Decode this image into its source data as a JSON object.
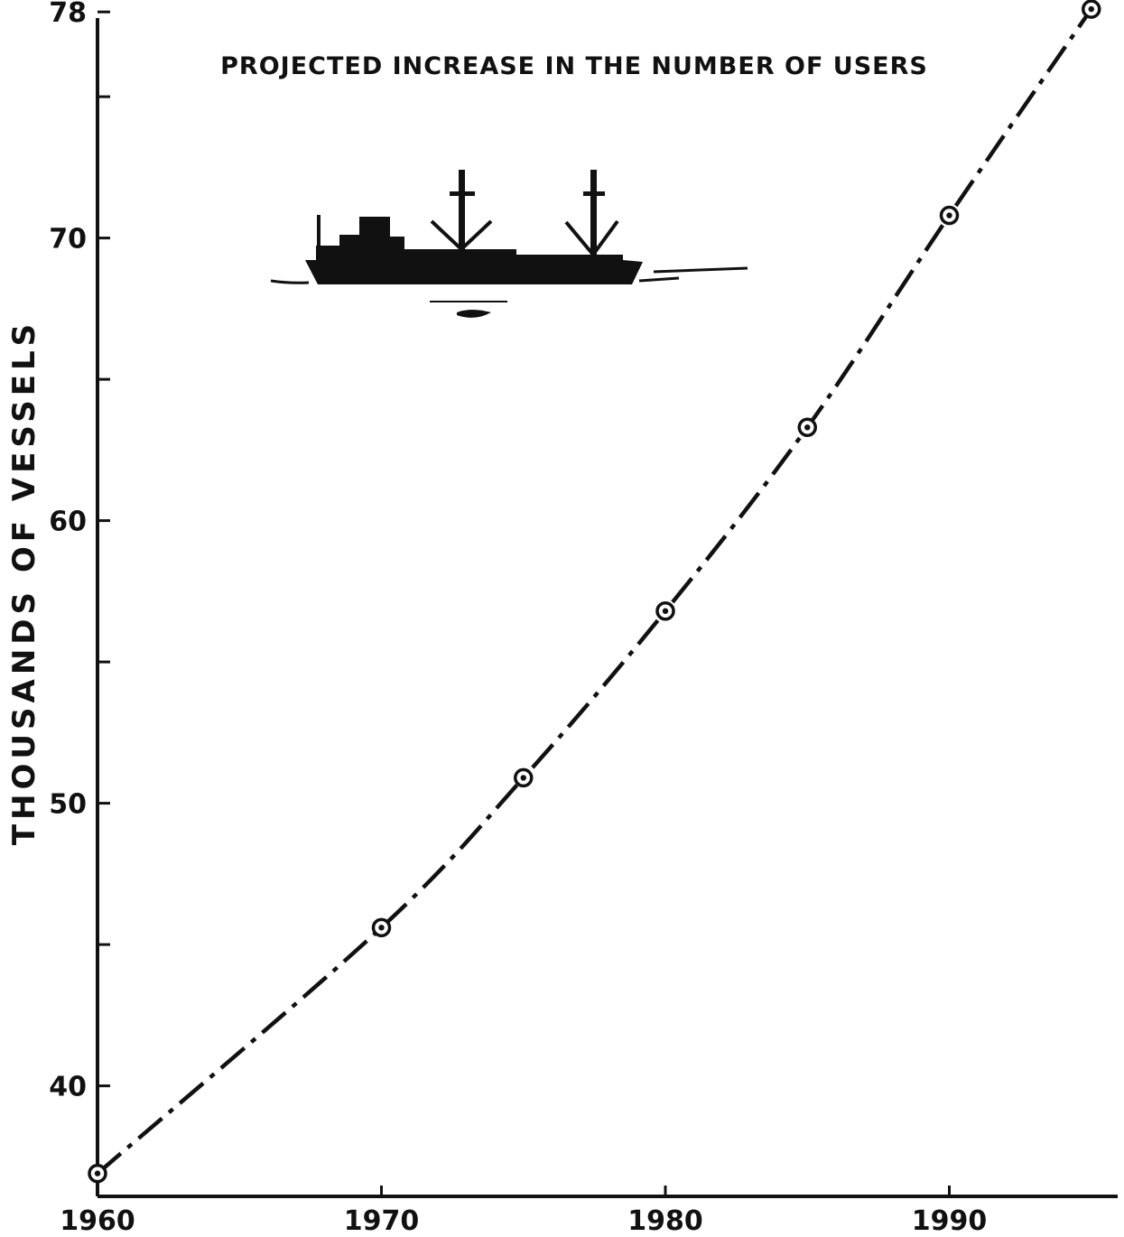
{
  "chart_data": {
    "type": "line",
    "title": "PROJECTED INCREASE IN THE NUMBER OF USERS",
    "xlabel": "",
    "ylabel": "THOUSANDS OF VESSELS",
    "x": [
      1960,
      1970,
      1975,
      1980,
      1985,
      1990,
      1995
    ],
    "series": [
      {
        "values": [
          36.9,
          45.6,
          50.9,
          56.8,
          63.3,
          70.8,
          78.1
        ]
      }
    ],
    "xlim": [
      1960,
      1996
    ],
    "ylim": [
      37,
      78
    ],
    "x_ticks": [
      1960,
      1970,
      1980,
      1990
    ],
    "x_tick_labels": [
      "1960",
      "1970",
      "1980",
      "1990"
    ],
    "y_ticks": [
      40,
      45,
      50,
      55,
      60,
      65,
      70,
      75,
      78
    ],
    "y_tick_labels": [
      "40",
      "",
      "50",
      "",
      "60",
      "",
      "70",
      "",
      "78"
    ],
    "line_style": "dash-dot",
    "marker": "circle-dot",
    "grid": false,
    "illustration": "cargo-ship-icon",
    "colors": {
      "ink": "#111111",
      "background": "#ffffff"
    }
  }
}
